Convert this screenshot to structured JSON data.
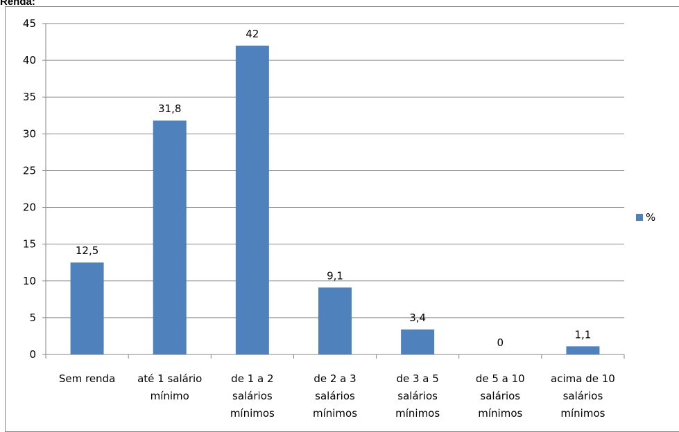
{
  "page": {
    "title": "Renda:"
  },
  "chart_data": {
    "type": "bar",
    "title": "",
    "xlabel": "",
    "ylabel": "",
    "ylim": [
      0,
      45
    ],
    "yticks": [
      0,
      5,
      10,
      15,
      20,
      25,
      30,
      35,
      40,
      45
    ],
    "grid": true,
    "legend": "right",
    "categories": [
      [
        "Sem renda"
      ],
      [
        "até 1 salário",
        "mínimo"
      ],
      [
        "de 1 a 2",
        "salários",
        "mínimos"
      ],
      [
        "de 2 a 3",
        "salários",
        "mínimos"
      ],
      [
        "de 3 a 5",
        "salários",
        "mínimos"
      ],
      [
        "de 5 a 10",
        "salários",
        "mínimos"
      ],
      [
        "acima de 10",
        "salários",
        "mínimos"
      ]
    ],
    "series": [
      {
        "name": "%",
        "color": "#4f81bd",
        "values": [
          12.5,
          31.8,
          42,
          9.1,
          3.4,
          0,
          1.1
        ],
        "labels": [
          "12,5",
          "31,8",
          "42",
          "9,1",
          "3,4",
          "0",
          "1,1"
        ]
      }
    ]
  }
}
